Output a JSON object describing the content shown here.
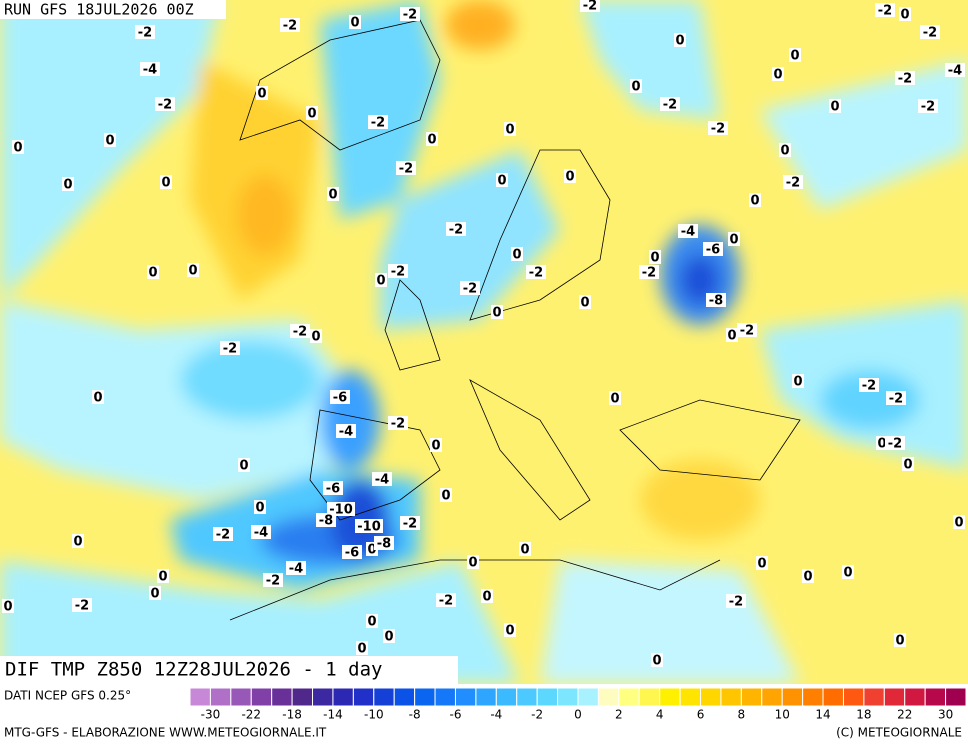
{
  "header": {
    "run": "RUN GFS 18JUL2026 00Z"
  },
  "map": {
    "title": "DIF TMP Z850 12Z28JUL2026 - 1 day",
    "contour_labels": [
      "-2",
      "-2",
      "0",
      "-2",
      "-2",
      "-2",
      "0",
      "-2",
      "-4",
      "-2",
      "0",
      "0",
      "-2",
      "0",
      "0",
      "0",
      "0",
      "0",
      "0",
      "-2",
      "-2",
      "0",
      "-2",
      "-2",
      "-4",
      "0",
      "0",
      "0",
      "0",
      "-2",
      "0",
      "0",
      "0",
      "-2",
      "0",
      "0",
      "-2",
      "-4",
      "-6",
      "0",
      "0",
      "-2",
      "0",
      "-2",
      "0",
      "0",
      "-2",
      "0",
      "-2",
      "0",
      "-8",
      "0",
      "0",
      "-2",
      "-2",
      "0",
      "-2",
      "0",
      "-6",
      "-2",
      "-4",
      "0",
      "0",
      "0",
      "-2",
      "-2",
      "0",
      "-2",
      "0",
      "0",
      "-6",
      "-4",
      "-10",
      "-8",
      "-10",
      "-2",
      "0",
      "0",
      "0",
      "-2",
      "-4",
      "0",
      "0",
      "-6",
      "0",
      "-8",
      "0",
      "-4",
      "-2",
      "0",
      "0",
      "0",
      "0",
      "0",
      "-2",
      "0",
      "-2",
      "0",
      "-2",
      "0",
      "0",
      "0",
      "0",
      "0",
      "0"
    ]
  },
  "colorbar": {
    "source": "DATI NCEP GFS 0.25°",
    "colors": [
      "#c888d8",
      "#b070c8",
      "#9858b8",
      "#8040a8",
      "#683098",
      "#50288c",
      "#3c28a0",
      "#2c28b4",
      "#2030c8",
      "#1440d8",
      "#0a52e8",
      "#0a66f0",
      "#1478f8",
      "#208eff",
      "#2ea6ff",
      "#3cbaff",
      "#4ccaff",
      "#5cd8ff",
      "#7ce6ff",
      "#a8f2ff",
      "#fffcc0",
      "#ffff80",
      "#fff650",
      "#fff000",
      "#ffe400",
      "#ffd600",
      "#ffc600",
      "#ffb400",
      "#ffa400",
      "#ff9200",
      "#ff8000",
      "#ff6c00",
      "#ff5810",
      "#f04030",
      "#e02838",
      "#d01840",
      "#b8084c",
      "#a00050"
    ],
    "ticks": [
      -30,
      -22,
      -18,
      -14,
      -10,
      -8,
      -6,
      -4,
      -2,
      0,
      2,
      4,
      6,
      8,
      10,
      14,
      18,
      22,
      30
    ]
  },
  "footer": {
    "left": "MTG-GFS - ELABORAZIONE WWW.METEOGIORNALE.IT",
    "right": "(C) METEOGIORNALE"
  }
}
